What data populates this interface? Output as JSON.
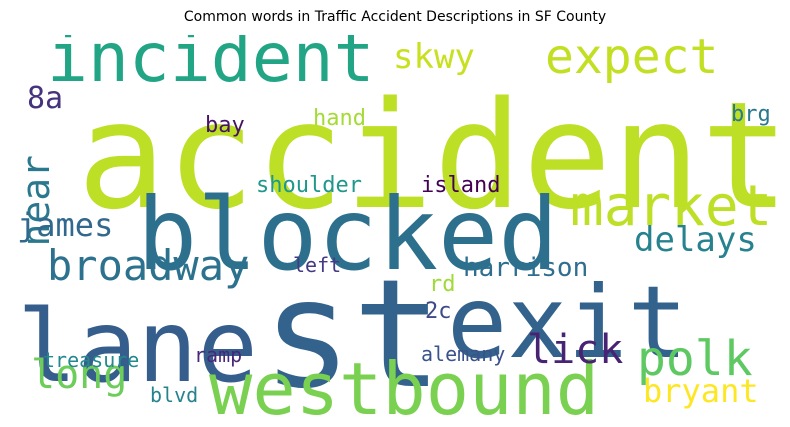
{
  "chart_data": {
    "type": "wordcloud",
    "title": "Common words in Traffic Accident Descriptions in SF County",
    "words": [
      {
        "text": "accident",
        "rank": 1,
        "color": "#bddf26",
        "orientation": "horizontal"
      },
      {
        "text": "st",
        "rank": 2,
        "color": "#33638d",
        "orientation": "horizontal"
      },
      {
        "text": "blocked",
        "rank": 3,
        "color": "#2d708e",
        "orientation": "horizontal"
      },
      {
        "text": "lane",
        "rank": 4,
        "color": "#355e8d",
        "orientation": "horizontal"
      },
      {
        "text": "exit",
        "rank": 5,
        "color": "#33638d",
        "orientation": "horizontal"
      },
      {
        "text": "westbound",
        "rank": 6,
        "color": "#7ad151",
        "orientation": "horizontal"
      },
      {
        "text": "incident",
        "rank": 7,
        "color": "#21a585",
        "orientation": "horizontal"
      },
      {
        "text": "market",
        "rank": 8,
        "color": "#bddf26",
        "orientation": "horizontal"
      },
      {
        "text": "expect",
        "rank": 9,
        "color": "#c2df23",
        "orientation": "horizontal"
      },
      {
        "text": "polk",
        "rank": 10,
        "color": "#5ec962",
        "orientation": "horizontal"
      },
      {
        "text": "broadway",
        "rank": 11,
        "color": "#2c728e",
        "orientation": "horizontal"
      },
      {
        "text": "long",
        "rank": 12,
        "color": "#6ccd5a",
        "orientation": "horizontal"
      },
      {
        "text": "delays",
        "rank": 13,
        "color": "#26828e",
        "orientation": "horizontal"
      },
      {
        "text": "lick",
        "rank": 14,
        "color": "#482374",
        "orientation": "horizontal"
      },
      {
        "text": "near",
        "rank": 15,
        "color": "#2a788e",
        "orientation": "vertical"
      },
      {
        "text": "skwy",
        "rank": 16,
        "color": "#c8e020",
        "orientation": "horizontal"
      },
      {
        "text": "james",
        "rank": 17,
        "color": "#31688e",
        "orientation": "horizontal"
      },
      {
        "text": "bryant",
        "rank": 18,
        "color": "#fde725",
        "orientation": "horizontal"
      },
      {
        "text": "harrison",
        "rank": 19,
        "color": "#2e6e8e",
        "orientation": "horizontal"
      },
      {
        "text": "8a",
        "rank": 20,
        "color": "#46337e",
        "orientation": "horizontal"
      },
      {
        "text": "island",
        "rank": 21,
        "color": "#440154",
        "orientation": "horizontal"
      },
      {
        "text": "shoulder",
        "rank": 22,
        "color": "#1f988b",
        "orientation": "horizontal"
      },
      {
        "text": "treasure",
        "rank": 23,
        "color": "#23898e",
        "orientation": "horizontal"
      },
      {
        "text": "ramp",
        "rank": 24,
        "color": "#482878",
        "orientation": "horizontal"
      },
      {
        "text": "alemany",
        "rank": 25,
        "color": "#3b528b",
        "orientation": "horizontal"
      },
      {
        "text": "hand",
        "rank": 26,
        "color": "#a5db36",
        "orientation": "horizontal"
      },
      {
        "text": "bay",
        "rank": 27,
        "color": "#471365",
        "orientation": "horizontal"
      },
      {
        "text": "brg",
        "rank": 28,
        "color": "#2a788e",
        "orientation": "horizontal"
      },
      {
        "text": "left",
        "rank": 29,
        "color": "#443983",
        "orientation": "horizontal"
      },
      {
        "text": "blvd",
        "rank": 30,
        "color": "#26828e",
        "orientation": "horizontal"
      },
      {
        "text": "rd",
        "rank": 31,
        "color": "#a0da39",
        "orientation": "horizontal"
      },
      {
        "text": "2c",
        "rank": 32,
        "color": "#3e4989",
        "orientation": "horizontal"
      }
    ]
  }
}
